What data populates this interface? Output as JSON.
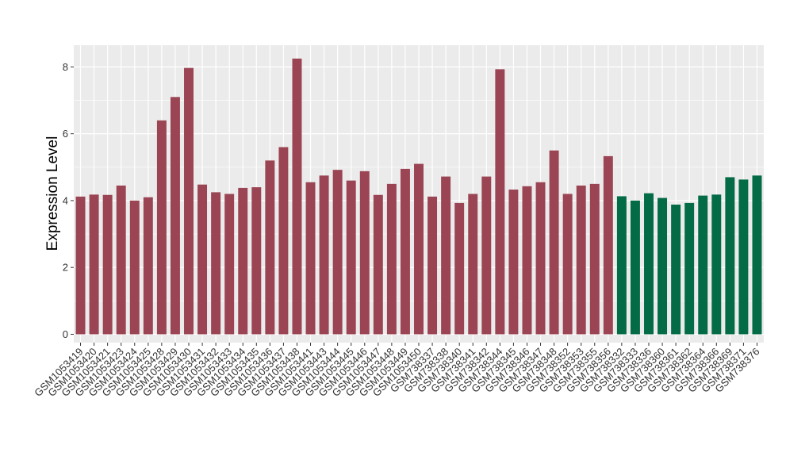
{
  "chart_data": {
    "type": "bar",
    "ylabel": "Expression Level",
    "xlabel": "",
    "ylim": [
      -0.25,
      8.65
    ],
    "yticks": [
      0,
      2,
      4,
      6,
      8
    ],
    "grid": true,
    "colors": {
      "group1": "#9B4453",
      "group2": "#036B45",
      "panel": "#EBEBEB",
      "grid": "#FFFFFF"
    },
    "categories": [
      "GSM1053419",
      "GSM1053420",
      "GSM1053421",
      "GSM1053423",
      "GSM1053424",
      "GSM1053425",
      "GSM1053428",
      "GSM1053429",
      "GSM1053430",
      "GSM1053431",
      "GSM1053432",
      "GSM1053433",
      "GSM1053434",
      "GSM1053435",
      "GSM1053436",
      "GSM1053437",
      "GSM1053438",
      "GSM1053441",
      "GSM1053443",
      "GSM1053444",
      "GSM1053445",
      "GSM1053446",
      "GSM1053447",
      "GSM1053448",
      "GSM1053449",
      "GSM1053450",
      "GSM738337",
      "GSM738338",
      "GSM738340",
      "GSM738341",
      "GSM738342",
      "GSM738344",
      "GSM738345",
      "GSM738346",
      "GSM738347",
      "GSM738348",
      "GSM738352",
      "GSM738353",
      "GSM738355",
      "GSM738356",
      "GSM738332",
      "GSM738333",
      "GSM738336",
      "GSM738360",
      "GSM738361",
      "GSM738362",
      "GSM738364",
      "GSM738366",
      "GSM738369",
      "GSM738371",
      "GSM738376"
    ],
    "values": [
      4.12,
      4.18,
      4.17,
      4.45,
      4.0,
      4.1,
      6.4,
      7.1,
      7.97,
      4.48,
      4.25,
      4.2,
      4.38,
      4.4,
      5.2,
      5.6,
      8.25,
      4.55,
      4.75,
      4.92,
      4.6,
      4.88,
      4.17,
      4.5,
      4.95,
      5.1,
      4.12,
      4.72,
      3.93,
      4.2,
      4.72,
      7.93,
      4.33,
      4.43,
      4.55,
      5.5,
      4.2,
      4.45,
      4.5,
      5.33,
      4.13,
      4.0,
      4.22,
      4.08,
      3.88,
      3.93,
      4.15,
      4.18,
      4.7,
      4.63,
      4.75
    ],
    "groups": [
      1,
      1,
      1,
      1,
      1,
      1,
      1,
      1,
      1,
      1,
      1,
      1,
      1,
      1,
      1,
      1,
      1,
      1,
      1,
      1,
      1,
      1,
      1,
      1,
      1,
      1,
      1,
      1,
      1,
      1,
      1,
      1,
      1,
      1,
      1,
      1,
      1,
      1,
      1,
      1,
      2,
      2,
      2,
      2,
      2,
      2,
      2,
      2,
      2,
      2,
      2
    ]
  }
}
